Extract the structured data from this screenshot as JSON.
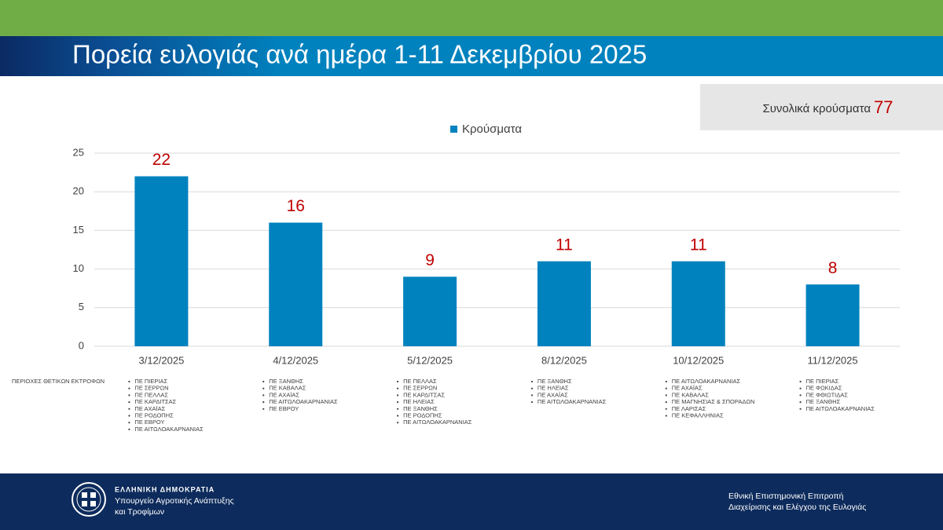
{
  "header": {
    "title": "Πορεία ευλογιάς ανά ημέρα 1-11 Δεκεμβρίου 2025"
  },
  "total": {
    "label": "Συνολικά κρούσματα",
    "value": 77
  },
  "chart_data": {
    "type": "bar",
    "categories": [
      "3/12/2025",
      "4/12/2025",
      "5/12/2025",
      "8/12/2025",
      "10/12/2025",
      "11/12/2025"
    ],
    "series": [
      {
        "name": "Κρούσματα",
        "color": "#0082be",
        "values": [
          22,
          16,
          9,
          11,
          11,
          8
        ]
      }
    ],
    "value_label_color": "#c00000",
    "ylim": [
      0,
      25
    ],
    "yticks": [
      0,
      5,
      10,
      15,
      20,
      25
    ],
    "grid": true,
    "legend": "top"
  },
  "regions": {
    "title": "ΠΕΡΙΟΧΕΣ ΘΕΤΙΚΩΝ ΕΚΤΡΟΦΩΝ",
    "lists": [
      [
        "ΠΕ ΠΙΕΡΙΑΣ",
        "ΠΕ ΣΕΡΡΩΝ",
        "ΠΕ ΠΕΛΛΑΣ",
        "ΠΕ ΚΑΡΔΙΤΣΑΣ",
        "ΠΕ ΑΧΑΪΑΣ",
        "ΠΕ ΡΟΔΟΠΗΣ",
        "ΠΕ ΕΒΡΟΥ",
        "ΠΕ ΑΙΤΩΛΟΑΚΑΡΝΑΝΙΑΣ"
      ],
      [
        "ΠΕ ΞΑΝΘΗΣ",
        "ΠΕ ΚΑΒΑΛΑΣ",
        "ΠΕ ΑΧΑΪΑΣ",
        "ΠΕ ΑΙΤΩΛΟΑΚΑΡΝΑΝΙΑΣ",
        "ΠΕ ΕΒΡΟΥ"
      ],
      [
        "ΠΕ ΠΕΛΛΑΣ",
        "ΠΕ ΣΕΡΡΩΝ",
        "ΠΕ ΚΑΡΔΙΤΣΑΣ",
        "ΠΕ ΗΛΕΙΑΣ",
        "ΠΕ ΞΑΝΘΗΣ",
        "ΠΕ ΡΟΔΟΠΗΣ",
        "ΠΕ ΑΙΤΩΛΟΑΚΑΡΝΑΝΙΑΣ"
      ],
      [
        "ΠΕ ΞΑΝΘΗΣ",
        "ΠΕ ΗΛΕΙΑΣ",
        "ΠΕ ΑΧΑΪΑΣ",
        "ΠΕ ΑΙΤΩΛΟΑΚΑΡΝΑΝΙΑΣ"
      ],
      [
        "ΠΕ ΑΙΤΩΛΟΑΚΑΡΝΑΝΙΑΣ",
        "ΠΕ ΑΧΑΪΑΣ",
        "ΠΕ ΚΑΒΑΛΑΣ",
        "ΠΕ ΜΑΓΝΗΣΙΑΣ & ΣΠΟΡΑΔΩΝ",
        "ΠΕ ΛΑΡΙΣΑΣ",
        "ΠΕ ΚΕΦΑΛΛΗΝΙΑΣ"
      ],
      [
        "ΠΕ ΠΙΕΡΙΑΣ",
        "ΠΕ ΦΩΚΙΔΑΣ",
        "ΠΕ ΦΘΙΩΤΙΔΑΣ",
        "ΠΕ ΞΑΝΘΗΣ",
        "ΠΕ ΑΙΤΩΛΟΑΚΑΡΝΑΝΙΑΣ"
      ]
    ]
  },
  "footer": {
    "org_title": "ΕΛΛΗΝΙΚΗ ΔΗΜΟΚΡΑΤΙΑ",
    "ministry_line1": "Υπουργείο Αγροτικής Ανάπτυξης",
    "ministry_line2": "και Τροφίμων",
    "committee_line1": "Εθνική Επιστημονική Επιτροπή",
    "committee_line2": "Διαχείρισης και Ελέγχου της Ευλογιάς"
  }
}
